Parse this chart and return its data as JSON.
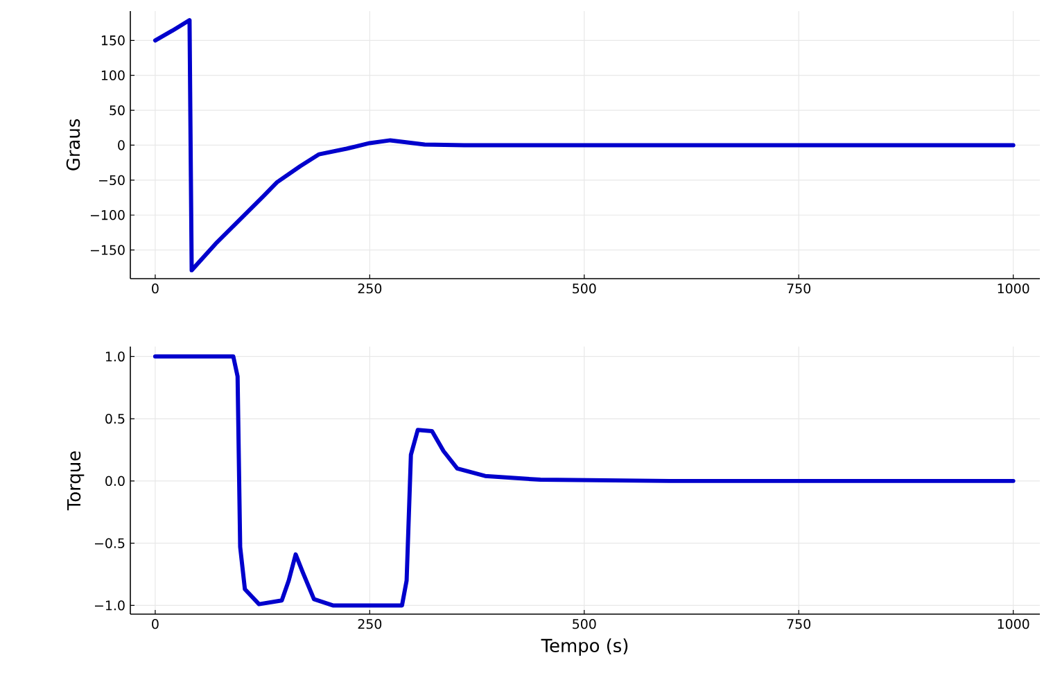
{
  "chart_data": [
    {
      "type": "line",
      "ylabel": "Graus",
      "xlim": [
        -29,
        1031
      ],
      "ylim": [
        -191,
        192
      ],
      "xticks": [
        0,
        250,
        500,
        750,
        1000
      ],
      "yticks": [
        {
          "value": -150,
          "label": "−150"
        },
        {
          "value": -100,
          "label": "−100"
        },
        {
          "value": -50,
          "label": "−50"
        },
        0,
        50,
        100,
        150
      ],
      "grid": true,
      "series": [
        {
          "color": "#0000cc",
          "x": [
            0,
            20,
            40,
            42.5,
            72,
            99,
            126,
            142,
            169,
            191,
            223,
            250,
            274,
            314,
            360,
            450,
            600,
            800,
            1000
          ],
          "values": [
            150,
            164,
            179,
            -179,
            -139,
            -106,
            -73,
            -53,
            -30,
            -13,
            -5,
            3,
            7,
            1,
            0,
            0,
            0,
            0,
            0
          ]
        }
      ]
    },
    {
      "type": "line",
      "xlabel": "Tempo (s)",
      "ylabel": "Torque",
      "xlim": [
        -29,
        1031
      ],
      "ylim": [
        -1.07,
        1.08
      ],
      "xticks": [
        0,
        250,
        500,
        750,
        1000
      ],
      "yticks": [
        {
          "value": -1,
          "label": "−1.0"
        },
        {
          "value": -0.5,
          "label": "−0.5"
        },
        {
          "value": 0,
          "label": "0.0"
        },
        {
          "value": 0.5,
          "label": "0.5"
        },
        {
          "value": 1,
          "label": "1.0"
        }
      ],
      "grid": true,
      "series": [
        {
          "color": "#0000cc",
          "x": [
            0,
            91,
            96,
            99,
            104.5,
            121,
            147.5,
            155.6,
            163.7,
            171.7,
            185,
            207,
            287.6,
            293,
            298,
            306,
            322.6,
            336,
            352,
            384.5,
            449,
            600,
            800,
            1000
          ],
          "values": [
            1,
            1,
            0.84,
            -0.53,
            -0.87,
            -0.99,
            -0.96,
            -0.8,
            -0.59,
            -0.73,
            -0.95,
            -1,
            -1,
            -0.8,
            0.21,
            0.41,
            0.4,
            0.24,
            0.1,
            0.04,
            0.01,
            0,
            0,
            0
          ]
        }
      ]
    }
  ]
}
